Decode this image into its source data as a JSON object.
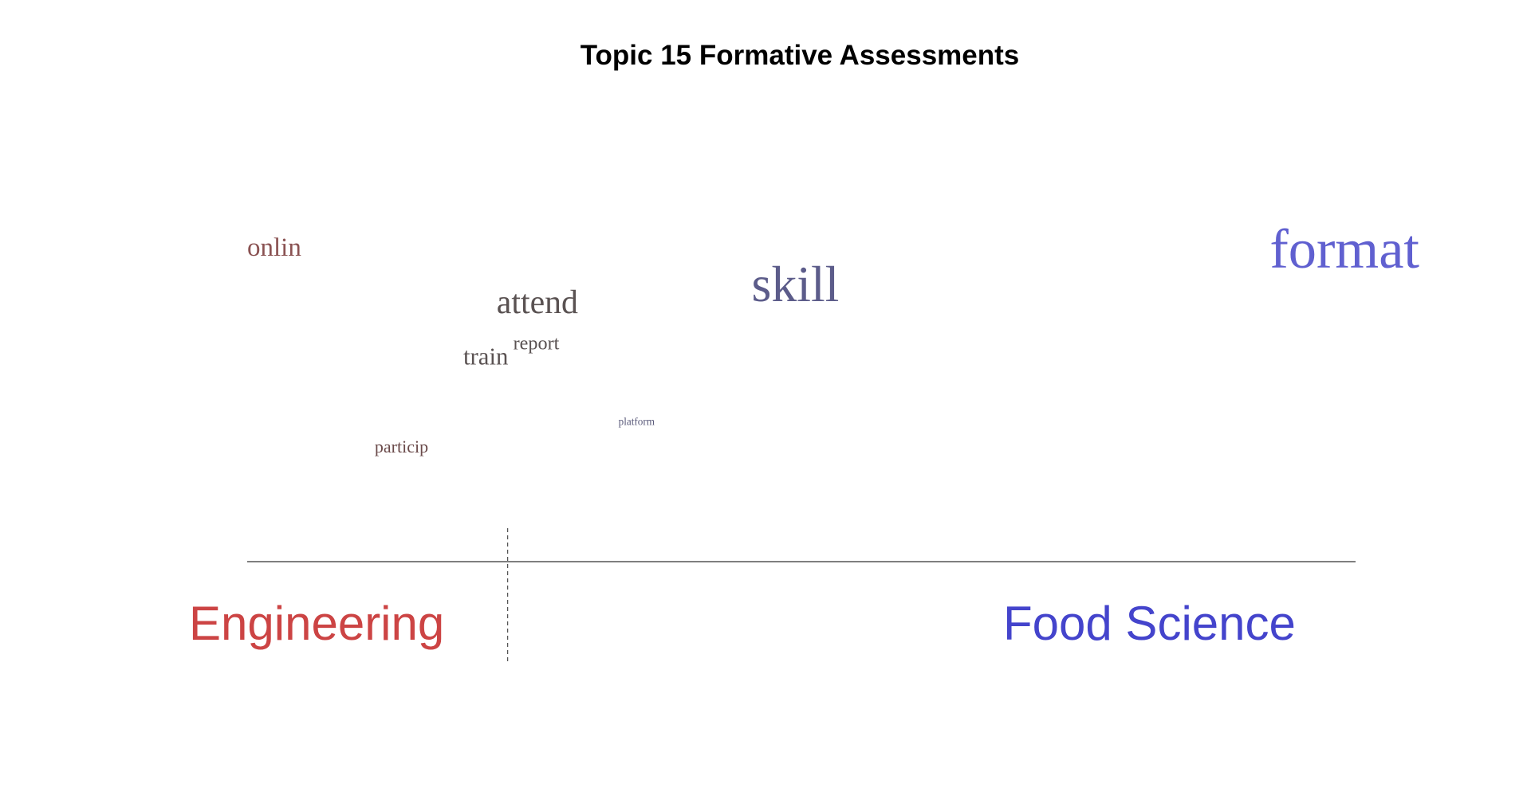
{
  "chart_data": {
    "type": "scatter",
    "title": "Topic 15 Formative Assessments",
    "xlim": [
      -1,
      1
    ],
    "ylim": [
      0,
      1
    ],
    "divider_x": -0.53,
    "groups": [
      {
        "name": "Engineering",
        "color": "#cc4444",
        "side": "left"
      },
      {
        "name": "Food Science",
        "color": "#4444cc",
        "side": "right"
      }
    ],
    "words": [
      {
        "text": "onlin",
        "x": -1.0,
        "y": 0.84,
        "weight": 1.0,
        "color": "#8a5252"
      },
      {
        "text": "attend",
        "x": -0.55,
        "y": 0.65,
        "weight": 1.4,
        "color": "#5a5252"
      },
      {
        "text": "skill",
        "x": -0.09,
        "y": 0.69,
        "weight": 2.4,
        "color": "#5c5c8a"
      },
      {
        "text": "format",
        "x": 1.0,
        "y": 0.8,
        "weight": 2.7,
        "color": "#6060d0"
      },
      {
        "text": "report",
        "x": -0.52,
        "y": 0.53,
        "weight": 0.6,
        "color": "#5a5252"
      },
      {
        "text": "train",
        "x": -0.61,
        "y": 0.48,
        "weight": 0.9,
        "color": "#5a5252"
      },
      {
        "text": "platform",
        "x": -0.33,
        "y": 0.28,
        "weight": 0.1,
        "color": "#5a5a7a"
      },
      {
        "text": "particip",
        "x": -0.77,
        "y": 0.19,
        "weight": 0.5,
        "color": "#6a4a4a"
      }
    ]
  }
}
